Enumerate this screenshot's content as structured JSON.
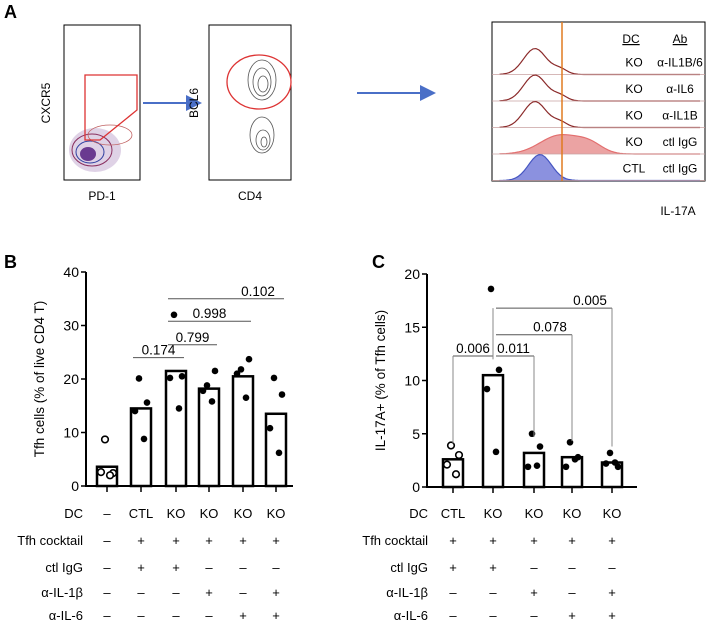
{
  "panel_a": {
    "label": "A",
    "plot1": {
      "x_label": "PD-1",
      "y_label": "CXCR5"
    },
    "plot2": {
      "x_label": "CD4",
      "y_label": "BCL6"
    },
    "histogram": {
      "x_label": "IL-17A",
      "header": [
        "DC",
        "Ab"
      ],
      "rows": [
        {
          "dc": "KO",
          "ab": "α-IL1B/6",
          "color": "#8b2a2a",
          "fill": "none"
        },
        {
          "dc": "KO",
          "ab": "α-IL6",
          "color": "#8b2a2a",
          "fill": "none"
        },
        {
          "dc": "KO",
          "ab": "α-IL1B",
          "color": "#8b2a2a",
          "fill": "none"
        },
        {
          "dc": "KO",
          "ab": "ctl IgG",
          "color": "#e06060",
          "fill": "#e99a9a"
        },
        {
          "dc": "CTL",
          "ab": "ctl IgG",
          "color": "#3344bb",
          "fill": "#7f86dc"
        }
      ],
      "gate_color": "#e07b20"
    }
  },
  "chart_data": [
    {
      "panel": "B",
      "type": "bar",
      "ylabel": "Tfh cells (% of live CD4 T)",
      "ylim": [
        0,
        40
      ],
      "yticks": [
        0,
        10,
        20,
        30,
        40
      ],
      "values": [
        3.6,
        14.5,
        21.5,
        18.2,
        20.5,
        13.5
      ],
      "open_points": [
        true,
        false,
        false,
        false,
        false,
        false
      ],
      "points": [
        [
          8.7,
          2.4,
          2.6,
          2.0
        ],
        [
          20.1,
          15.6,
          14.0,
          8.8
        ],
        [
          32.0,
          20.5,
          20.2,
          14.5
        ],
        [
          18.8,
          21.5,
          17.8,
          15.8
        ],
        [
          21.8,
          23.7,
          21.0,
          16.5
        ],
        [
          20.2,
          17.1,
          10.8,
          6.2
        ]
      ],
      "comparisons": [
        {
          "from": 1,
          "to": 2,
          "label": "0.174",
          "y": 24.0
        },
        {
          "from": 2,
          "to": 3,
          "label": "0.799",
          "y": 26.4
        },
        {
          "from": 2,
          "to": 4,
          "label": "0.998",
          "y": 30.8
        },
        {
          "from": 2,
          "to": 5,
          "label": "0.102",
          "y": 35.0
        }
      ],
      "table": [
        {
          "label": "DC",
          "cells": [
            "–",
            "CTL",
            "KO",
            "KO",
            "KO",
            "KO"
          ]
        },
        {
          "label": "Tfh cocktail",
          "cells": [
            "–",
            "+",
            "+",
            "+",
            "+",
            "+"
          ]
        },
        {
          "label": "ctl IgG",
          "cells": [
            "–",
            "+",
            "+",
            "–",
            "–",
            "–"
          ]
        },
        {
          "label": "α-IL-1β",
          "cells": [
            "–",
            "–",
            "–",
            "+",
            "–",
            "+"
          ]
        },
        {
          "label": "α-IL-6",
          "cells": [
            "–",
            "–",
            "–",
            "–",
            "+",
            "+"
          ]
        }
      ]
    },
    {
      "panel": "C",
      "type": "bar",
      "ylabel": "IL-17A+ (% of Tfh cells)",
      "ylim": [
        0,
        20
      ],
      "yticks": [
        0,
        5,
        10,
        15,
        20
      ],
      "values": [
        2.6,
        10.5,
        3.2,
        2.8,
        2.3
      ],
      "open_points": [
        true,
        false,
        false,
        false,
        false
      ],
      "points": [
        [
          3.9,
          3.0,
          2.1,
          1.2
        ],
        [
          18.6,
          11.0,
          9.2,
          3.3
        ],
        [
          5.0,
          3.8,
          1.9,
          2.0
        ],
        [
          4.2,
          2.8,
          1.9,
          2.6
        ],
        [
          3.2,
          1.9,
          2.2,
          2.3
        ]
      ],
      "comparisons": [
        {
          "from": 0,
          "to": 1,
          "label": "0.006",
          "y": 12.3,
          "drop": true
        },
        {
          "from": 1,
          "to": 2,
          "label": "0.011",
          "y": 12.3,
          "drop": true
        },
        {
          "from": 1,
          "to": 3,
          "label": "0.078",
          "y": 14.3,
          "drop": true
        },
        {
          "from": 1,
          "to": 4,
          "label": "0.005",
          "y": 16.8,
          "drop": true
        }
      ],
      "table": [
        {
          "label": "DC",
          "cells": [
            "CTL",
            "KO",
            "KO",
            "KO",
            "KO"
          ]
        },
        {
          "label": "Tfh cocktail",
          "cells": [
            "+",
            "+",
            "+",
            "+",
            "+"
          ]
        },
        {
          "label": "ctl IgG",
          "cells": [
            "+",
            "+",
            "–",
            "–",
            "–"
          ]
        },
        {
          "label": "α-IL-1β",
          "cells": [
            "–",
            "–",
            "+",
            "–",
            "+"
          ]
        },
        {
          "label": "α-IL-6",
          "cells": [
            "–",
            "–",
            "–",
            "+",
            "+"
          ]
        }
      ]
    }
  ]
}
